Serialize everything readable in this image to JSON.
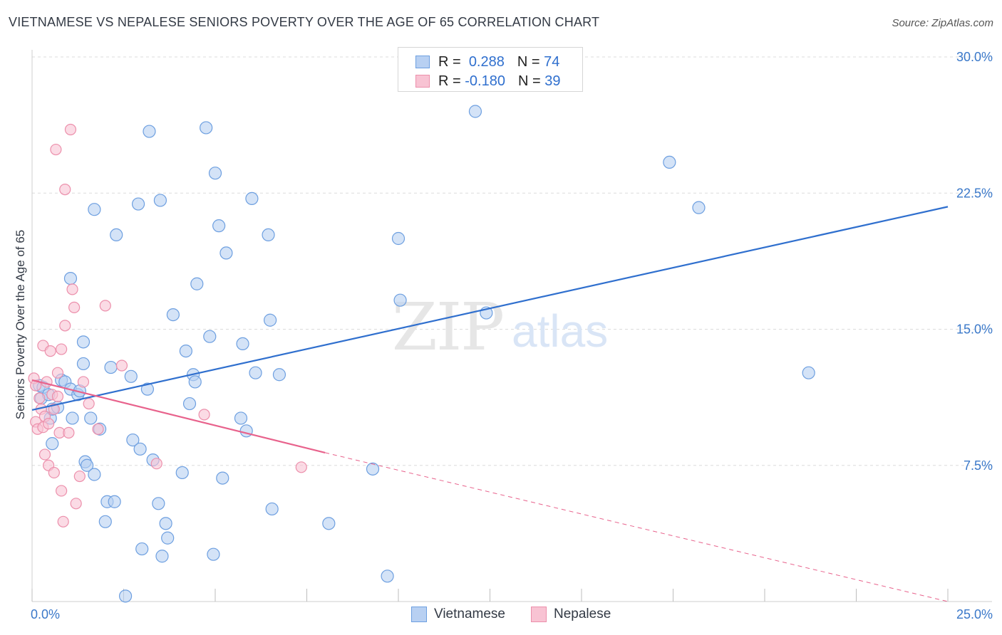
{
  "title": "VIETNAMESE VS NEPALESE SENIORS POVERTY OVER THE AGE OF 65 CORRELATION CHART",
  "source": "Source: ZipAtlas.com",
  "watermark": {
    "zip": "ZIP",
    "atlas": "atlas"
  },
  "legend": {
    "rows": [
      {
        "r_label": "R =",
        "r_value": "0.288",
        "n_label": "N =",
        "n_value": "74"
      },
      {
        "r_label": "R =",
        "r_value": "-0.180",
        "n_label": "N =",
        "n_value": "39"
      }
    ]
  },
  "bottom_legend": [
    "Vietnamese",
    "Nepalese"
  ],
  "colors": {
    "viet_fill": "#b8d0f2",
    "viet_stroke": "#6d9fe0",
    "viet_line": "#2f6fce",
    "nep_fill": "#f8c3d3",
    "nep_stroke": "#ec8fab",
    "nep_line": "#e8628c",
    "grid": "#dcdcdc",
    "tick_text": "#3a78c9"
  },
  "chart_data": {
    "type": "scatter",
    "title": "VIETNAMESE VS NEPALESE SENIORS POVERTY OVER THE AGE OF 65 CORRELATION CHART",
    "xlabel": "",
    "ylabel": "Seniors Poverty Over the Age of 65",
    "xlim": [
      0,
      25
    ],
    "ylim": [
      0,
      30
    ],
    "x_tick_labels": [
      "0.0%",
      "25.0%"
    ],
    "y_ticks": [
      7.5,
      15.0,
      22.5,
      30.0
    ],
    "y_tick_labels": [
      "7.5%",
      "15.0%",
      "22.5%",
      "30.0%"
    ],
    "series": [
      {
        "name": "Vietnamese",
        "R": 0.288,
        "N": 74,
        "trend": {
          "x": [
            0,
            25
          ],
          "y": [
            10.55,
            21.75
          ],
          "dashed_to": null
        },
        "points": [
          [
            0.2,
            11.9
          ],
          [
            0.25,
            11.2
          ],
          [
            0.3,
            11.8
          ],
          [
            0.45,
            11.4
          ],
          [
            0.5,
            10.1
          ],
          [
            0.55,
            8.7
          ],
          [
            0.55,
            10.6
          ],
          [
            0.7,
            10.7
          ],
          [
            0.8,
            12.2
          ],
          [
            0.9,
            12.1
          ],
          [
            1.05,
            11.7
          ],
          [
            1.1,
            10.1
          ],
          [
            1.05,
            17.8
          ],
          [
            1.25,
            11.4
          ],
          [
            1.3,
            11.6
          ],
          [
            1.4,
            13.1
          ],
          [
            1.4,
            14.3
          ],
          [
            1.45,
            7.7
          ],
          [
            1.5,
            7.5
          ],
          [
            1.6,
            10.1
          ],
          [
            1.7,
            21.6
          ],
          [
            1.7,
            7.0
          ],
          [
            1.85,
            9.5
          ],
          [
            2.0,
            4.4
          ],
          [
            2.05,
            5.5
          ],
          [
            2.15,
            12.9
          ],
          [
            2.25,
            5.5
          ],
          [
            2.3,
            20.2
          ],
          [
            2.55,
            0.3
          ],
          [
            2.7,
            12.4
          ],
          [
            2.75,
            8.9
          ],
          [
            2.9,
            21.9
          ],
          [
            2.95,
            8.4
          ],
          [
            3.0,
            2.9
          ],
          [
            3.15,
            11.7
          ],
          [
            3.2,
            25.9
          ],
          [
            3.3,
            7.8
          ],
          [
            3.45,
            5.4
          ],
          [
            3.5,
            22.1
          ],
          [
            3.55,
            2.5
          ],
          [
            3.65,
            4.3
          ],
          [
            3.7,
            3.5
          ],
          [
            3.85,
            15.8
          ],
          [
            4.1,
            7.1
          ],
          [
            4.2,
            13.8
          ],
          [
            4.3,
            10.9
          ],
          [
            4.4,
            12.5
          ],
          [
            4.45,
            12.1
          ],
          [
            4.5,
            17.5
          ],
          [
            4.75,
            26.1
          ],
          [
            4.85,
            14.6
          ],
          [
            4.95,
            2.6
          ],
          [
            5.0,
            23.6
          ],
          [
            5.1,
            20.7
          ],
          [
            5.2,
            6.8
          ],
          [
            5.3,
            19.2
          ],
          [
            5.7,
            10.1
          ],
          [
            5.75,
            14.2
          ],
          [
            5.85,
            9.4
          ],
          [
            6.0,
            22.2
          ],
          [
            6.1,
            12.6
          ],
          [
            6.45,
            20.2
          ],
          [
            6.5,
            15.5
          ],
          [
            6.55,
            5.1
          ],
          [
            6.75,
            12.5
          ],
          [
            8.1,
            4.3
          ],
          [
            9.3,
            7.3
          ],
          [
            9.7,
            1.4
          ],
          [
            10.0,
            20.0
          ],
          [
            10.05,
            16.6
          ],
          [
            12.1,
            27.0
          ],
          [
            12.4,
            15.9
          ],
          [
            17.4,
            24.2
          ],
          [
            18.2,
            21.7
          ],
          [
            21.2,
            12.6
          ]
        ]
      },
      {
        "name": "Nepalese",
        "R": -0.18,
        "N": 39,
        "trend": {
          "x": [
            0,
            8
          ],
          "y": [
            12.2,
            8.2
          ],
          "dashed_to": [
            25,
            0
          ]
        },
        "points": [
          [
            0.05,
            12.3
          ],
          [
            0.1,
            11.9
          ],
          [
            0.1,
            9.9
          ],
          [
            0.15,
            9.5
          ],
          [
            0.2,
            11.2
          ],
          [
            0.25,
            10.6
          ],
          [
            0.3,
            9.6
          ],
          [
            0.3,
            14.1
          ],
          [
            0.35,
            10.2
          ],
          [
            0.35,
            8.1
          ],
          [
            0.4,
            12.1
          ],
          [
            0.45,
            9.8
          ],
          [
            0.45,
            7.5
          ],
          [
            0.5,
            13.8
          ],
          [
            0.55,
            11.4
          ],
          [
            0.6,
            7.1
          ],
          [
            0.6,
            10.6
          ],
          [
            0.65,
            24.9
          ],
          [
            0.7,
            12.6
          ],
          [
            0.7,
            11.3
          ],
          [
            0.75,
            9.3
          ],
          [
            0.8,
            6.1
          ],
          [
            0.8,
            13.9
          ],
          [
            0.85,
            4.4
          ],
          [
            0.9,
            22.7
          ],
          [
            0.9,
            15.2
          ],
          [
            1.0,
            9.3
          ],
          [
            1.05,
            26.0
          ],
          [
            1.1,
            17.2
          ],
          [
            1.15,
            16.2
          ],
          [
            1.2,
            5.4
          ],
          [
            1.3,
            6.9
          ],
          [
            1.4,
            12.1
          ],
          [
            1.55,
            10.9
          ],
          [
            1.8,
            9.5
          ],
          [
            2.0,
            16.3
          ],
          [
            2.45,
            13.0
          ],
          [
            3.4,
            7.6
          ],
          [
            4.7,
            10.3
          ],
          [
            7.35,
            7.4
          ]
        ]
      }
    ]
  }
}
